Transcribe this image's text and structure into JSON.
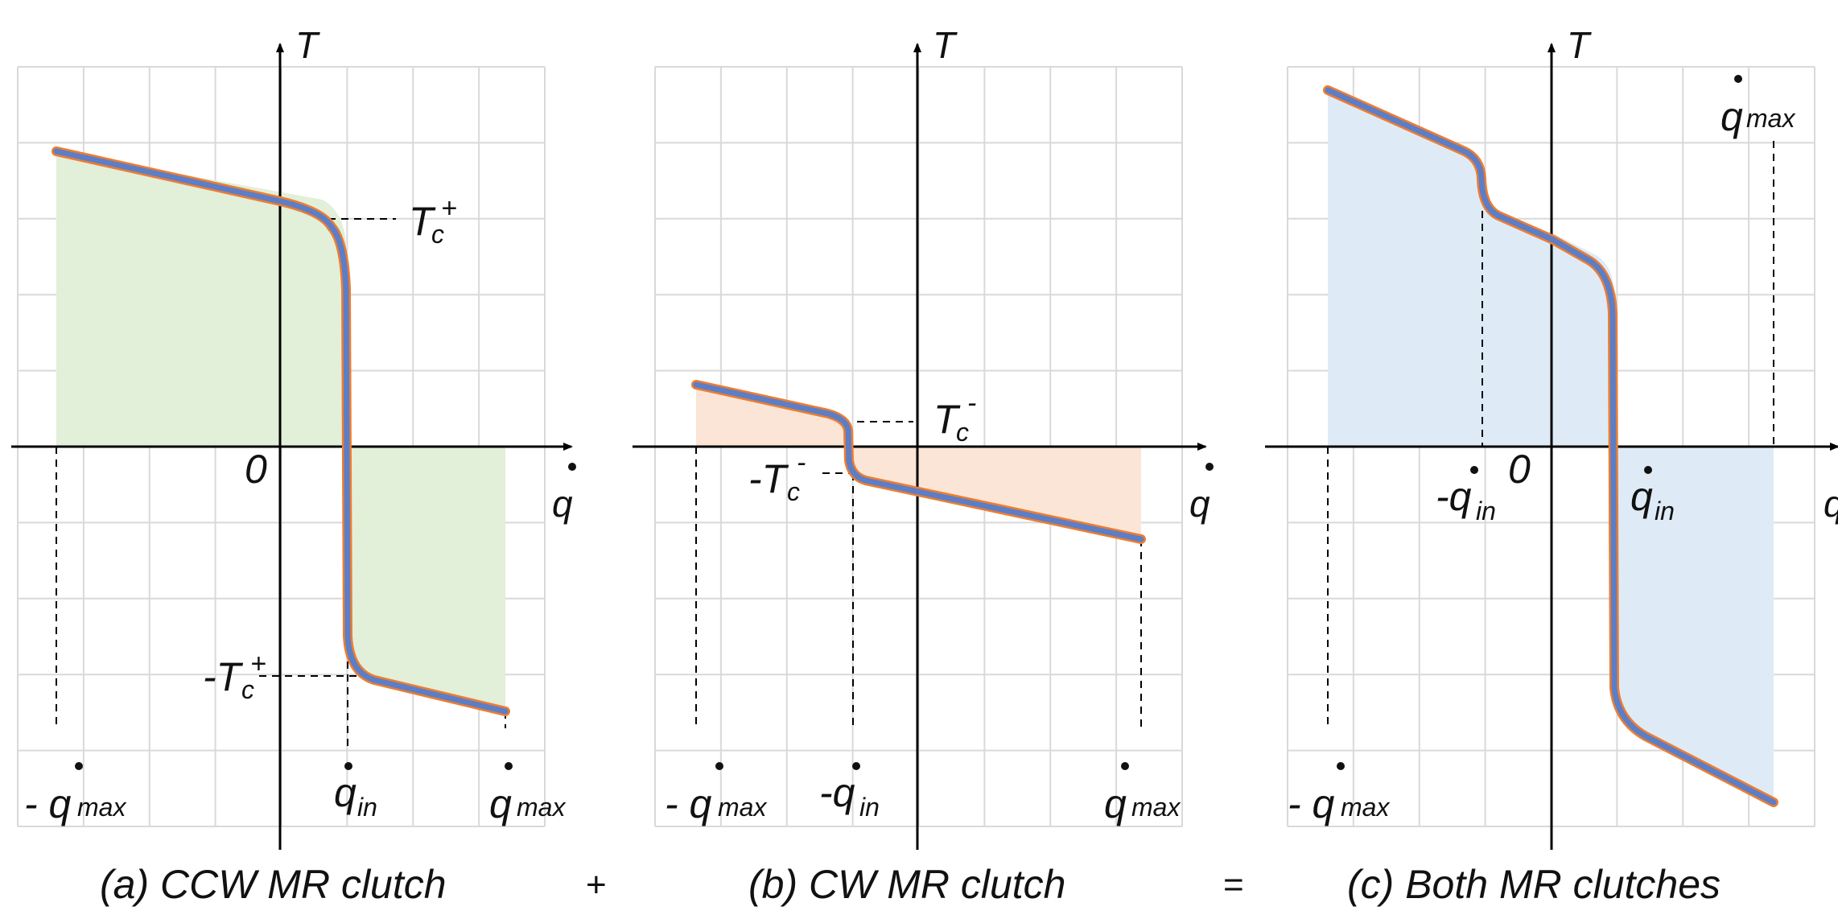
{
  "panels": [
    {
      "id": "a",
      "caption": "(a) CCW MR clutch",
      "axis_t": "T",
      "axis_q": "q",
      "origin": "0",
      "fill_color": "#e2efd9",
      "curve_color": "#5b7ec7",
      "curve_outline": "#ed7d31",
      "labels": {
        "neg_qmax": "- q",
        "neg_qmax_sub": "max",
        "qin": "q",
        "qin_sub": "in",
        "qmax": "q",
        "qmax_sub": "max",
        "tc_pos": "T",
        "tc_pos_sub": "c",
        "tc_pos_sup": "+",
        "tc_neg": "-T",
        "tc_neg_sub": "c",
        "tc_neg_sup": "+"
      }
    },
    {
      "id": "b",
      "caption": "(b) CW MR clutch",
      "axis_t": "T",
      "axis_q": "q",
      "fill_color": "#fbe5d6",
      "curve_color": "#5b7ec7",
      "curve_outline": "#ed7d31",
      "labels": {
        "neg_qmax": "- q",
        "neg_qmax_sub": "max",
        "neg_qin": "-q",
        "neg_qin_sub": "in",
        "qmax": "q",
        "qmax_sub": "max",
        "tc_pos": "T",
        "tc_pos_sub": "c",
        "tc_pos_sup": "-",
        "tc_neg": "-T",
        "tc_neg_sub": "c",
        "tc_neg_sup": "-"
      }
    },
    {
      "id": "c",
      "caption": "(c) Both MR clutches",
      "axis_t": "T",
      "axis_q": "q",
      "origin": "0",
      "fill_color": "#deebf7",
      "curve_color": "#5b7ec7",
      "curve_outline": "#ed7d31",
      "labels": {
        "neg_qmax": "- q",
        "neg_qmax_sub": "max",
        "neg_qin": "-q",
        "neg_qin_sub": "in",
        "qin": "q",
        "qin_sub": "in",
        "qmax": "q",
        "qmax_sub": "max"
      }
    }
  ],
  "operators": {
    "plus": "+",
    "equals": "="
  },
  "grid_color": "#d9d9d9",
  "axis_color": "#000000"
}
